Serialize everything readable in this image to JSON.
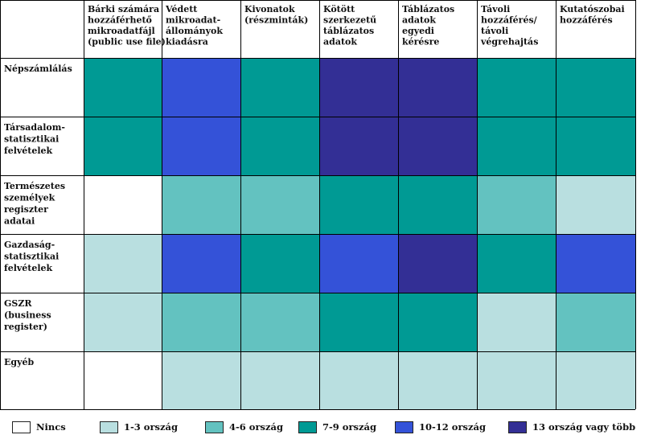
{
  "chart_data": {
    "type": "heatmap",
    "columns": [
      [
        "Bárki számára",
        "hozzáférhető",
        "mikroadatfájl",
        "(public use file)"
      ],
      [
        "Védett",
        "mikroadat-",
        "állományok",
        "kiadásra"
      ],
      [
        "Kivonatok",
        "(részminták)"
      ],
      [
        "Kötött",
        "szerkezetű",
        "táblázatos",
        "adatok"
      ],
      [
        "Táblázatos",
        "adatok",
        "egyedi",
        "kérésre"
      ],
      [
        "Távoli",
        "hozzáférés/",
        "távoli",
        "végrehajtás"
      ],
      [
        "Kutatószobai",
        "hozzáférés"
      ]
    ],
    "rows": [
      [
        "Népszámlálás"
      ],
      [
        "Társadalom-",
        "statisztikai",
        "felvételek"
      ],
      [
        "Természetes",
        "személyek",
        "regiszter",
        "adatai"
      ],
      [
        "Gazdaság-",
        "statisztikai",
        "felvételek"
      ],
      [
        "GSZR",
        "(business",
        "register)"
      ],
      [
        "Egyéb"
      ]
    ],
    "levels": [
      {
        "label": "Nincs",
        "color": "#ffffff"
      },
      {
        "label": "1-3 ország",
        "color": "#b9dfe0"
      },
      {
        "label": "4-6 ország",
        "color": "#63c2c0"
      },
      {
        "label": "7-9 ország",
        "color": "#009a94"
      },
      {
        "label": "10-12 ország",
        "color": "#3452d8"
      },
      {
        "label": "13 ország vagy több",
        "color": "#332f95"
      }
    ],
    "values": [
      [
        3,
        4,
        3,
        5,
        5,
        3,
        3
      ],
      [
        3,
        4,
        3,
        5,
        5,
        3,
        3
      ],
      [
        0,
        2,
        2,
        3,
        3,
        2,
        1
      ],
      [
        1,
        4,
        3,
        4,
        5,
        3,
        4
      ],
      [
        1,
        2,
        2,
        3,
        3,
        1,
        2
      ],
      [
        0,
        1,
        1,
        1,
        1,
        1,
        1
      ]
    ]
  }
}
